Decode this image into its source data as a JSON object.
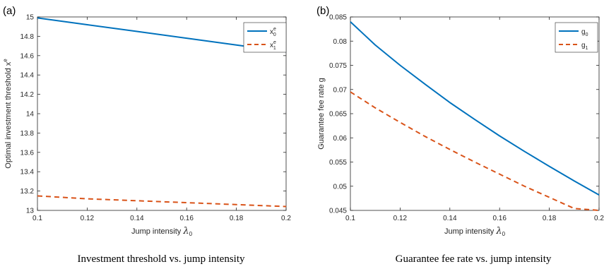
{
  "colors": {
    "series_1": "#0072BD",
    "series_2": "#D95319",
    "axis": "#262626"
  },
  "chart_data": [
    {
      "type": "line",
      "panel_label": "(a)",
      "caption": "Investment threshold vs. jump intensity",
      "xlabel": {
        "text": "Jump intensity ",
        "symbol": "λ",
        "sub": "0"
      },
      "ylabel": {
        "text": "Optimal investment threshold x",
        "sup": "e"
      },
      "xlim": [
        0.1,
        0.2
      ],
      "ylim": [
        13,
        15
      ],
      "xticks": [
        0.1,
        0.12,
        0.14,
        0.16,
        0.18,
        0.2
      ],
      "xtick_labels": [
        "0.1",
        "0.12",
        "0.14",
        "0.16",
        "0.18",
        "0.2"
      ],
      "yticks": [
        13,
        13.2,
        13.4,
        13.6,
        13.8,
        14,
        14.2,
        14.4,
        14.6,
        14.8,
        15
      ],
      "ytick_labels": [
        "13",
        "13.2",
        "13.4",
        "13.6",
        "13.8",
        "14",
        "14.2",
        "14.4",
        "14.6",
        "14.8",
        "15"
      ],
      "grid": false,
      "legend": "top-right",
      "series": [
        {
          "name": "x",
          "name_sup": "e",
          "name_sub": "0",
          "style": "solid",
          "x": [
            0.1,
            0.12,
            0.14,
            0.16,
            0.18,
            0.2
          ],
          "y": [
            14.99,
            14.92,
            14.85,
            14.78,
            14.71,
            14.64
          ]
        },
        {
          "name": "x",
          "name_sup": "e",
          "name_sub": "1",
          "style": "dashed",
          "x": [
            0.1,
            0.12,
            0.14,
            0.16,
            0.18,
            0.2
          ],
          "y": [
            13.15,
            13.12,
            13.1,
            13.08,
            13.06,
            13.04
          ]
        }
      ]
    },
    {
      "type": "line",
      "panel_label": "(b)",
      "caption": "Guarantee fee rate vs. jump intensity",
      "xlabel": {
        "text": "Jump intensity ",
        "symbol": "λ",
        "sub": "0"
      },
      "ylabel": {
        "text": "Guarantee fee rate g",
        "sup": ""
      },
      "xlim": [
        0.1,
        0.2
      ],
      "ylim": [
        0.045,
        0.085
      ],
      "xticks": [
        0.1,
        0.12,
        0.14,
        0.16,
        0.18,
        0.2
      ],
      "xtick_labels": [
        "0.1",
        "0.12",
        "0.14",
        "0.16",
        "0.18",
        "0.2"
      ],
      "yticks": [
        0.045,
        0.05,
        0.055,
        0.06,
        0.065,
        0.07,
        0.075,
        0.08,
        0.085
      ],
      "ytick_labels": [
        "0.045",
        "0.05",
        "0.055",
        "0.06",
        "0.065",
        "0.07",
        "0.075",
        "0.08",
        "0.085"
      ],
      "grid": false,
      "legend": "top-right",
      "series": [
        {
          "name": "g",
          "name_sup": "",
          "name_sub": "0",
          "style": "solid",
          "x": [
            0.1,
            0.11,
            0.12,
            0.13,
            0.14,
            0.15,
            0.16,
            0.17,
            0.18,
            0.19,
            0.2
          ],
          "y": [
            0.084,
            0.0792,
            0.075,
            0.0711,
            0.0673,
            0.0638,
            0.0604,
            0.0572,
            0.0541,
            0.0511,
            0.0482
          ]
        },
        {
          "name": "g",
          "name_sup": "",
          "name_sub": "1",
          "style": "dashed",
          "x": [
            0.1,
            0.11,
            0.12,
            0.13,
            0.14,
            0.15,
            0.16,
            0.17,
            0.18,
            0.19,
            0.2
          ],
          "y": [
            0.0695,
            0.0662,
            0.0632,
            0.0603,
            0.0576,
            0.055,
            0.0525,
            0.05,
            0.0477,
            0.0454,
            0.045
          ]
        }
      ]
    }
  ]
}
